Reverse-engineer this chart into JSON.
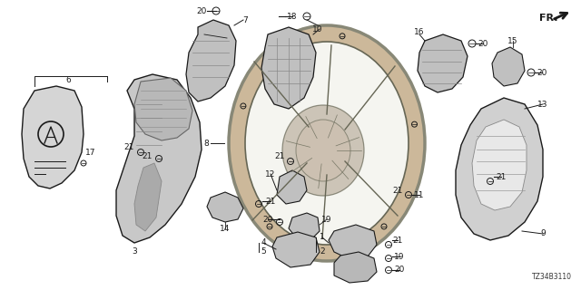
{
  "figsize": [
    6.4,
    3.2
  ],
  "dpi": 100,
  "background": "#ffffff",
  "diagram_code": "TZ34B3110",
  "fr_text": "FR.",
  "label_fontsize": 6.5,
  "small_fontsize": 5.5,
  "line_color": "#1a1a1a",
  "fill_color": "#c8c8c8",
  "fill_dark": "#999999",
  "fill_light": "#e8e8e8",
  "wheel_rim_color": "#ccb89a",
  "wheel_inner_color": "#d4c4a8"
}
